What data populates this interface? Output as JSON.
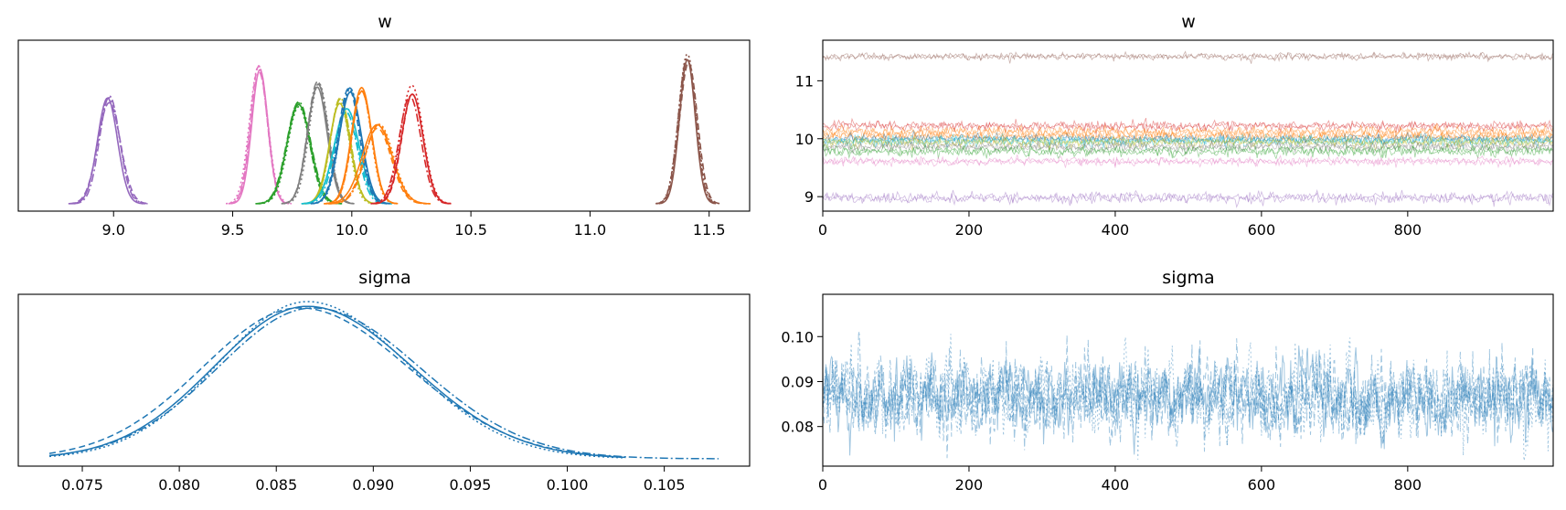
{
  "chart_data": [
    {
      "type": "line",
      "subtype": "kde",
      "title": "w",
      "xlabel": "",
      "ylabel": "",
      "xlim": [
        8.6,
        11.67
      ],
      "xticks": [
        "9.0",
        "9.5",
        "10.0",
        "10.5",
        "11.0",
        "11.5"
      ],
      "xtick_values": [
        9.0,
        9.5,
        10.0,
        10.5,
        11.0,
        11.5
      ],
      "yticks": [],
      "grid": false,
      "series": [
        {
          "mean": 8.98,
          "sd": 0.045,
          "peak": 0.68,
          "color": "#9467bd"
        },
        {
          "mean": 9.61,
          "sd": 0.036,
          "peak": 0.85,
          "color": "#e377c2"
        },
        {
          "mean": 9.78,
          "sd": 0.05,
          "peak": 0.63,
          "color": "#2ca02c"
        },
        {
          "mean": 9.86,
          "sd": 0.04,
          "peak": 0.77,
          "color": "#7f7f7f"
        },
        {
          "mean": 9.95,
          "sd": 0.042,
          "peak": 0.66,
          "color": "#bcbd22"
        },
        {
          "mean": 9.98,
          "sd": 0.05,
          "peak": 0.6,
          "color": "#17becf"
        },
        {
          "mean": 9.99,
          "sd": 0.045,
          "peak": 0.72,
          "color": "#1f77b4"
        },
        {
          "mean": 10.04,
          "sd": 0.04,
          "peak": 0.76,
          "color": "#ff7f0e"
        },
        {
          "mean": 10.11,
          "sd": 0.06,
          "peak": 0.5,
          "color": "#ff7f0e"
        },
        {
          "mean": 10.25,
          "sd": 0.045,
          "peak": 0.73,
          "color": "#d62728"
        },
        {
          "mean": 11.41,
          "sd": 0.035,
          "peak": 0.93,
          "color": "#8c564b"
        }
      ]
    },
    {
      "type": "line",
      "subtype": "trace",
      "title": "w",
      "xlabel": "",
      "ylabel": "",
      "xlim": [
        0,
        999
      ],
      "ylim": [
        8.75,
        11.7
      ],
      "xticks": [
        "0",
        "200",
        "400",
        "600",
        "800"
      ],
      "xtick_values": [
        0,
        200,
        400,
        600,
        800
      ],
      "yticks": [
        "9",
        "10",
        "11"
      ],
      "ytick_values": [
        9,
        10,
        11
      ],
      "grid": false,
      "series": [
        {
          "mean": 11.42,
          "sd": 0.03,
          "color": "#8c564b"
        },
        {
          "mean": 10.22,
          "sd": 0.04,
          "color": "#d62728"
        },
        {
          "mean": 10.12,
          "sd": 0.045,
          "color": "#ff7f0e"
        },
        {
          "mean": 10.04,
          "sd": 0.04,
          "color": "#ff7f0e"
        },
        {
          "mean": 9.99,
          "sd": 0.04,
          "color": "#1f77b4"
        },
        {
          "mean": 9.96,
          "sd": 0.045,
          "color": "#17becf"
        },
        {
          "mean": 9.94,
          "sd": 0.04,
          "color": "#bcbd22"
        },
        {
          "mean": 9.86,
          "sd": 0.04,
          "color": "#7f7f7f"
        },
        {
          "mean": 9.79,
          "sd": 0.045,
          "color": "#2ca02c"
        },
        {
          "mean": 9.61,
          "sd": 0.035,
          "color": "#e377c2"
        },
        {
          "mean": 8.98,
          "sd": 0.045,
          "color": "#9467bd"
        }
      ]
    },
    {
      "type": "line",
      "subtype": "kde",
      "title": "sigma",
      "xlabel": "",
      "ylabel": "",
      "xlim": [
        0.0717,
        0.1094
      ],
      "xticks": [
        "0.075",
        "0.080",
        "0.085",
        "0.090",
        "0.095",
        "0.100",
        "0.105"
      ],
      "xtick_values": [
        0.075,
        0.08,
        0.085,
        0.09,
        0.095,
        0.1,
        0.105
      ],
      "yticks": [],
      "grid": false,
      "series": [
        {
          "mean": 0.0866,
          "sd": 0.0048,
          "peak": 0.97,
          "color": "#1f77b4",
          "dash": ""
        },
        {
          "mean": 0.0862,
          "sd": 0.005,
          "peak": 0.96,
          "color": "#1f77b4",
          "dash": "7,4"
        },
        {
          "mean": 0.0866,
          "sd": 0.0046,
          "peak": 1.0,
          "color": "#1f77b4",
          "dash": "2,3"
        },
        {
          "mean": 0.0869,
          "sd": 0.0049,
          "peak": 0.96,
          "color": "#1f77b4",
          "dash": "9,3,2,3"
        }
      ]
    },
    {
      "type": "line",
      "subtype": "trace",
      "title": "sigma",
      "xlabel": "",
      "ylabel": "",
      "xlim": [
        0,
        999
      ],
      "ylim": [
        0.0712,
        0.1094
      ],
      "xticks": [
        "0",
        "200",
        "400",
        "600",
        "800"
      ],
      "xtick_values": [
        0,
        200,
        400,
        600,
        800
      ],
      "yticks": [
        "0.08",
        "0.09",
        "0.10"
      ],
      "ytick_values": [
        0.08,
        0.09,
        0.1
      ],
      "grid": false,
      "series": [
        {
          "mean": 0.0866,
          "sd": 0.0042,
          "color": "#1f77b4"
        }
      ]
    }
  ]
}
